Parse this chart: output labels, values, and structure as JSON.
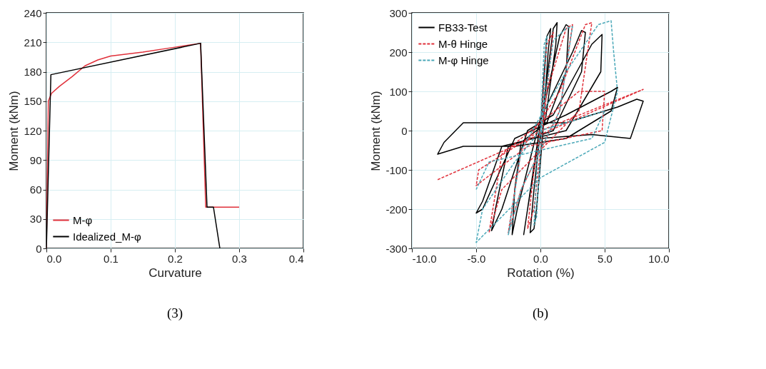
{
  "chart_data": [
    {
      "type": "line",
      "xlabel": "Curvature",
      "ylabel": "Moment (kNm)",
      "xlim": [
        0,
        0.4
      ],
      "ylim": [
        0,
        240
      ],
      "xticks": [
        {
          "value": 0,
          "label": "0.0"
        },
        {
          "value": 0.1,
          "label": "0.1"
        },
        {
          "value": 0.2,
          "label": "0.2"
        },
        {
          "value": 0.3,
          "label": "0.3"
        },
        {
          "value": 0.4,
          "label": "0.4"
        }
      ],
      "yticks": [
        0,
        30,
        60,
        90,
        120,
        150,
        180,
        210,
        240
      ],
      "grid": true,
      "legend": "bottom left",
      "marker": "none",
      "annotations": [
        "(3)"
      ],
      "series": [
        {
          "name": "M-φ",
          "color": "#e0303a",
          "line_style": "solid",
          "x": [
            0,
            0.003,
            0.008,
            0.02,
            0.04,
            0.06,
            0.08,
            0.1,
            0.15,
            0.2,
            0.24,
            0.248,
            0.3
          ],
          "values": [
            0,
            150,
            158,
            165,
            175,
            186,
            192,
            196,
            200,
            205,
            209,
            42,
            42
          ]
        },
        {
          "name": "Idealized_M-φ",
          "color": "#000000",
          "line_style": "solid",
          "x": [
            0,
            0.007,
            0.24,
            0.25,
            0.26,
            0.27
          ],
          "values": [
            0,
            177,
            209,
            42,
            42,
            0
          ]
        }
      ]
    },
    {
      "type": "line",
      "xlabel": "Rotation (%)",
      "ylabel": "Moment (kNm)",
      "xlim": [
        -10,
        10
      ],
      "ylim": [
        -300,
        300
      ],
      "xticks": [
        {
          "value": -10,
          "label": "-10.0"
        },
        {
          "value": -5,
          "label": "-5.0"
        },
        {
          "value": 0,
          "label": "0.0"
        },
        {
          "value": 5,
          "label": "5.0"
        },
        {
          "value": 10,
          "label": "10.0"
        }
      ],
      "yticks": [
        -300,
        -200,
        -100,
        0,
        100,
        200,
        300
      ],
      "grid": true,
      "legend": "top left",
      "marker": "none",
      "annotations": [
        "(b)"
      ],
      "series": [
        {
          "name": "FB33-Test",
          "color": "#000000",
          "line_style": "solid",
          "x": [
            0,
            0.3,
            0.5,
            0.8,
            0.6,
            0.2,
            -0.3,
            -0.5,
            -0.8,
            -0.5,
            0,
            1.0,
            1.3,
            1.2,
            0.4,
            -0.2,
            -1.0,
            -1.3,
            -1.0,
            0,
            1.5,
            2.0,
            2.2,
            2.0,
            0.5,
            -1.5,
            -2.0,
            -2.2,
            -1.8,
            0,
            2.5,
            3.2,
            3.5,
            3.2,
            1,
            -2.5,
            -3.5,
            -3.8,
            -3,
            -1,
            1,
            4,
            4.8,
            4.7,
            2,
            -3,
            -4.5,
            -5,
            -4.5,
            -2,
            2,
            5.5,
            6.0,
            5.5,
            2,
            -2,
            -6,
            -8,
            -7.5,
            -6,
            -2,
            2,
            6,
            7.5,
            8,
            7,
            4,
            0
          ],
          "values": [
            0,
            150,
            240,
            260,
            200,
            0,
            -200,
            -250,
            -260,
            -150,
            0,
            260,
            275,
            220,
            30,
            -40,
            -200,
            -265,
            -200,
            20,
            240,
            270,
            265,
            150,
            20,
            -30,
            -150,
            -265,
            -200,
            30,
            200,
            255,
            250,
            150,
            0,
            -40,
            -200,
            -255,
            -200,
            0,
            40,
            220,
            245,
            150,
            0,
            -40,
            -180,
            -210,
            -200,
            -20,
            40,
            100,
            110,
            50,
            -20,
            -40,
            -40,
            -60,
            -30,
            20,
            20,
            20,
            60,
            80,
            75,
            -20,
            -10,
            -20
          ]
        },
        {
          "name": "M-θ Hinge",
          "color": "#e0303a",
          "line_style": "dashed",
          "x": [
            0,
            0.5,
            1,
            0.5,
            -0.5,
            -1,
            -0.5,
            0.5,
            2,
            2.5,
            1.5,
            -1.5,
            -2.5,
            -1.5,
            1.5,
            3.5,
            4,
            3,
            -3,
            -4,
            -3,
            3,
            5,
            4.8,
            -1,
            -5,
            -4.8,
            0,
            8,
            -8
          ],
          "values": [
            0,
            220,
            250,
            100,
            -200,
            -250,
            -100,
            100,
            260,
            270,
            50,
            -150,
            -260,
            -50,
            100,
            270,
            275,
            50,
            -150,
            -260,
            -60,
            100,
            100,
            0,
            -40,
            -140,
            -100,
            0,
            105,
            -125
          ]
        },
        {
          "name": "M-φ Hinge",
          "color": "#4aa8b8",
          "line_style": "dashed",
          "x": [
            0,
            0.3,
            0.5,
            0.2,
            -0.3,
            -0.5,
            -0.2,
            1,
            2,
            2.5,
            1.5,
            -1.5,
            -2.5,
            -1.5,
            2,
            4.5,
            5.5,
            5.7,
            6,
            5,
            0,
            -5,
            -4.5,
            -2,
            0,
            5,
            4,
            -4,
            -5
          ],
          "values": [
            0,
            220,
            240,
            50,
            -220,
            -240,
            -50,
            230,
            260,
            265,
            50,
            -150,
            -265,
            -50,
            150,
            270,
            280,
            200,
            100,
            -30,
            -120,
            -285,
            -200,
            -80,
            0,
            50,
            -20,
            -80,
            -150
          ]
        }
      ]
    }
  ]
}
